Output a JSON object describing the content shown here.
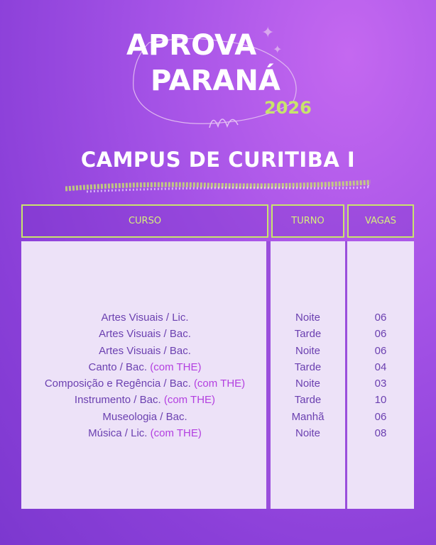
{
  "logo": {
    "line1": "APROVA",
    "line2": "PARANÁ",
    "year": "2026"
  },
  "title": "CAMPUS DE CURITIBA I",
  "colors": {
    "accent_lime": "#c8e46c",
    "text_purple": "#6b40b0",
    "highlight": "#b33fe0",
    "cell_bg": "#ede2f8"
  },
  "table": {
    "headers": {
      "curso": "CURSO",
      "turno": "TURNO",
      "vagas": "VAGAS"
    },
    "rows": [
      {
        "curso": "Artes Visuais / Lic.",
        "note": "",
        "turno": "Noite",
        "vagas": "06"
      },
      {
        "curso": "Artes Visuais / Bac.",
        "note": "",
        "turno": "Tarde",
        "vagas": "06"
      },
      {
        "curso": "Artes Visuais / Bac.",
        "note": "",
        "turno": "Noite",
        "vagas": "06"
      },
      {
        "curso": "Canto / Bac.",
        "note": "(com THE)",
        "turno": "Tarde",
        "vagas": "04"
      },
      {
        "curso": "Composição e Regência / Bac.",
        "note": "(com THE)",
        "turno": "Noite",
        "vagas": "03"
      },
      {
        "curso": "Instrumento / Bac.",
        "note": "(com THE)",
        "turno": "Tarde",
        "vagas": "10"
      },
      {
        "curso": "Museologia / Bac.",
        "note": "",
        "turno": "Manhã",
        "vagas": "06"
      },
      {
        "curso": "Música / Lic.",
        "note": "(com THE)",
        "turno": "Noite",
        "vagas": "08"
      }
    ]
  }
}
